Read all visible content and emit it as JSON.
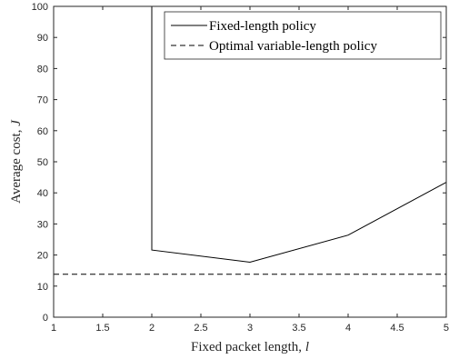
{
  "chart_data": {
    "type": "line",
    "xlabel": "Fixed packet length, ",
    "xlabel_var": "l",
    "ylabel": "Average cost, ",
    "ylabel_var": "J",
    "xlim": [
      1,
      5
    ],
    "ylim": [
      0,
      100
    ],
    "xticks": [
      "1",
      "1.5",
      "2",
      "2.5",
      "3",
      "3.5",
      "4",
      "4.5",
      "5"
    ],
    "yticks": [
      "0",
      "10",
      "20",
      "30",
      "40",
      "50",
      "60",
      "70",
      "80",
      "90",
      "100"
    ],
    "grid": false,
    "legend_position": "top-right",
    "series": [
      {
        "name": "Fixed-length policy",
        "style": "solid",
        "color": "#000000",
        "x": [
          2,
          2,
          3,
          4,
          5
        ],
        "y": [
          100,
          21.6,
          17.7,
          26.4,
          43.4
        ]
      },
      {
        "name": "Optimal variable-length policy",
        "style": "dashed",
        "color": "#000000",
        "x": [
          1,
          5
        ],
        "y": [
          13.8,
          13.8
        ]
      }
    ]
  }
}
